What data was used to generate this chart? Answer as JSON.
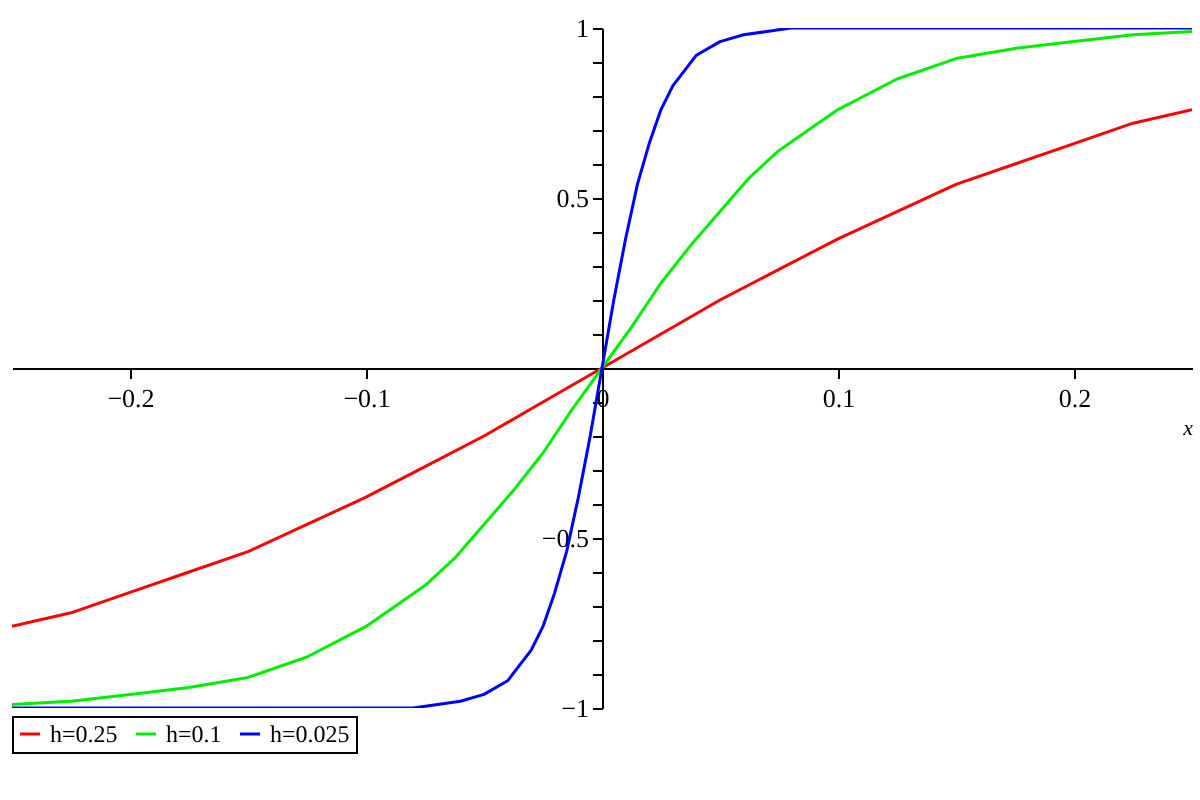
{
  "chart_data": {
    "type": "line",
    "xlabel": "x",
    "xlim": [
      -0.25,
      0.25
    ],
    "ylim": [
      -1,
      1
    ],
    "xticks": [
      -0.2,
      -0.1,
      0,
      0.1,
      0.2
    ],
    "yticks": [
      -1,
      {
        "value": -0.9,
        "label": null
      },
      {
        "value": -0.8,
        "label": null
      },
      {
        "value": -0.7,
        "label": null
      },
      {
        "value": -0.6,
        "label": null
      },
      -0.5,
      {
        "value": -0.4,
        "label": null
      },
      {
        "value": -0.3,
        "label": null
      },
      {
        "value": -0.2,
        "label": null
      },
      {
        "value": -0.1,
        "label": null
      },
      {
        "value": 0.1,
        "label": null
      },
      {
        "value": 0.2,
        "label": null
      },
      {
        "value": 0.3,
        "label": null
      },
      {
        "value": 0.4,
        "label": null
      },
      0.5,
      {
        "value": 0.6,
        "label": null
      },
      {
        "value": 0.7,
        "label": null
      },
      {
        "value": 0.8,
        "label": null
      },
      {
        "value": 0.9,
        "label": null
      },
      1
    ],
    "grid": false,
    "legend": "bottom",
    "marker": "none",
    "line_style": "solid",
    "series": [
      {
        "name": "h=0.25",
        "color": "#ff0000",
        "x": [
          -0.25,
          -0.225,
          -0.2,
          -0.175,
          -0.15,
          -0.125,
          -0.1,
          -0.075,
          -0.05,
          -0.025,
          0,
          0.025,
          0.05,
          0.075,
          0.1,
          0.125,
          0.15,
          0.175,
          0.2,
          0.225,
          0.25
        ],
        "values": [
          -0.76,
          -0.72,
          -0.66,
          -0.6,
          -0.54,
          -0.46,
          -0.38,
          -0.29,
          -0.2,
          -0.1,
          0,
          0.1,
          0.2,
          0.29,
          0.38,
          0.46,
          0.54,
          0.6,
          0.66,
          0.72,
          0.76
        ]
      },
      {
        "name": "h=0.1",
        "color": "#00ee00",
        "x": [
          -0.25,
          -0.225,
          -0.2,
          -0.175,
          -0.15,
          -0.125,
          -0.1,
          -0.0875,
          -0.075,
          -0.0625,
          -0.05,
          -0.0375,
          -0.025,
          -0.0125,
          0,
          0.0125,
          0.025,
          0.0375,
          0.05,
          0.0625,
          0.075,
          0.0875,
          0.1,
          0.125,
          0.15,
          0.175,
          0.2,
          0.225,
          0.25
        ],
        "values": [
          -0.99,
          -0.98,
          -0.96,
          -0.94,
          -0.91,
          -0.85,
          -0.76,
          -0.7,
          -0.64,
          -0.56,
          -0.46,
          -0.36,
          -0.25,
          -0.12,
          0,
          0.12,
          0.25,
          0.36,
          0.46,
          0.56,
          0.64,
          0.7,
          0.76,
          0.85,
          0.91,
          0.94,
          0.96,
          0.98,
          0.99
        ]
      },
      {
        "name": "h=0.025",
        "color": "#0000ff",
        "x": [
          -0.25,
          -0.08,
          -0.06,
          -0.05,
          -0.04,
          -0.03,
          -0.025,
          -0.02,
          -0.015,
          -0.0125,
          -0.01,
          -0.0075,
          -0.005,
          -0.0025,
          0,
          0.0025,
          0.005,
          0.0075,
          0.01,
          0.0125,
          0.015,
          0.02,
          0.025,
          0.03,
          0.04,
          0.05,
          0.06,
          0.08,
          0.25
        ],
        "values": [
          -1,
          -1,
          -0.98,
          -0.96,
          -0.92,
          -0.83,
          -0.76,
          -0.66,
          -0.54,
          -0.46,
          -0.38,
          -0.29,
          -0.2,
          -0.1,
          0,
          0.1,
          0.2,
          0.29,
          0.38,
          0.46,
          0.54,
          0.66,
          0.76,
          0.83,
          0.92,
          0.96,
          0.98,
          1,
          1
        ]
      }
    ]
  }
}
